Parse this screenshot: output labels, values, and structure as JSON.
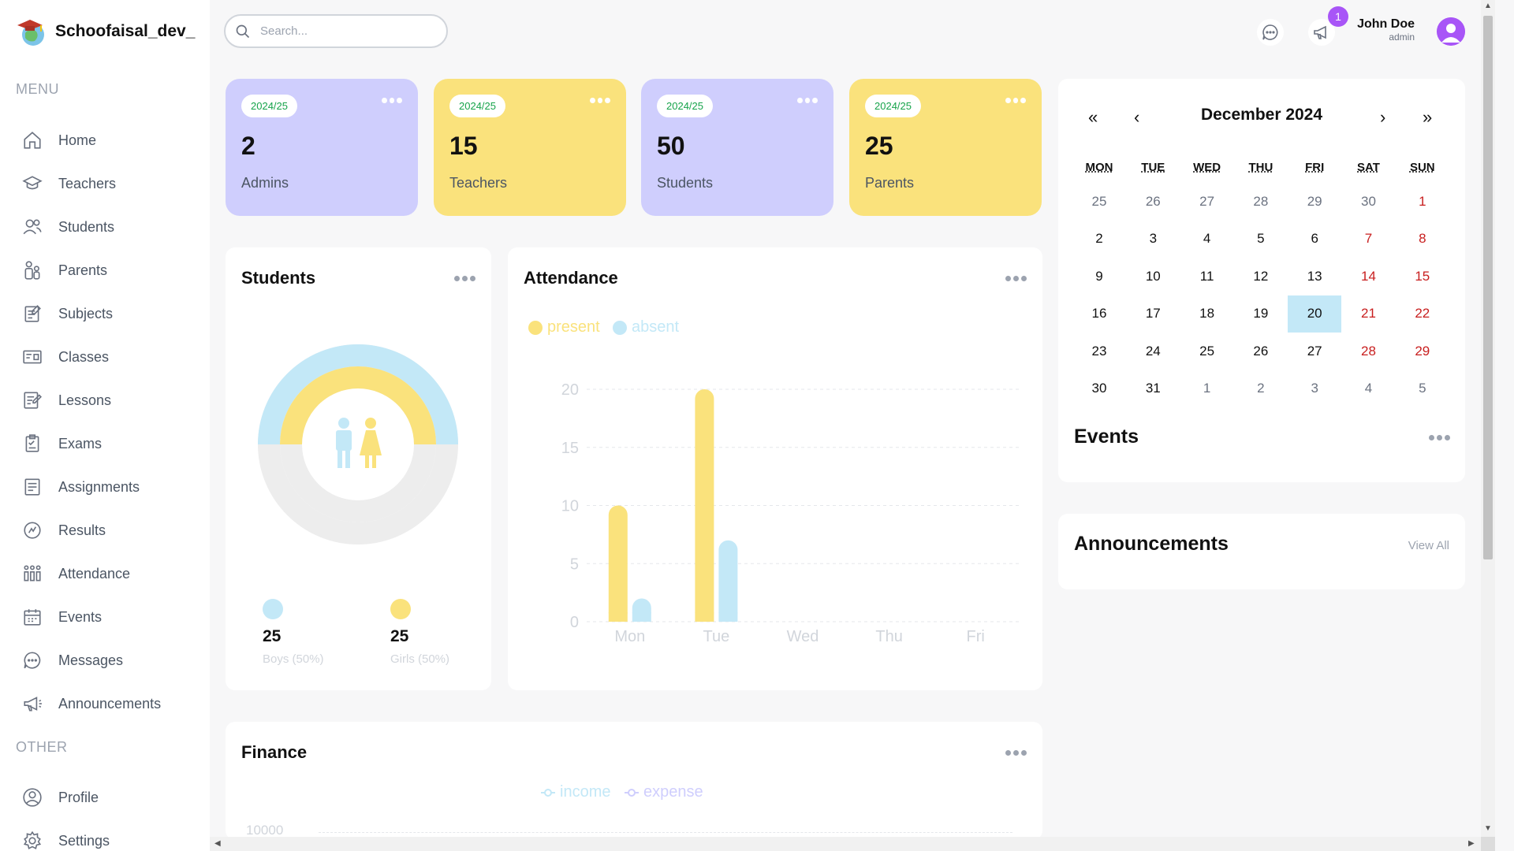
{
  "app": {
    "name": "Schoofaisal_dev_"
  },
  "sidebar": {
    "menu_label": "MENU",
    "other_label": "OTHER",
    "items": [
      {
        "label": "Home",
        "icon": "home-icon"
      },
      {
        "label": "Teachers",
        "icon": "teacher-icon"
      },
      {
        "label": "Students",
        "icon": "students-icon"
      },
      {
        "label": "Parents",
        "icon": "parents-icon"
      },
      {
        "label": "Subjects",
        "icon": "subjects-icon"
      },
      {
        "label": "Classes",
        "icon": "classes-icon"
      },
      {
        "label": "Lessons",
        "icon": "lessons-icon"
      },
      {
        "label": "Exams",
        "icon": "exams-icon"
      },
      {
        "label": "Assignments",
        "icon": "assignments-icon"
      },
      {
        "label": "Results",
        "icon": "results-icon"
      },
      {
        "label": "Attendance",
        "icon": "attendance-icon"
      },
      {
        "label": "Events",
        "icon": "events-icon"
      },
      {
        "label": "Messages",
        "icon": "messages-icon"
      },
      {
        "label": "Announcements",
        "icon": "announcements-icon"
      }
    ],
    "other_items": [
      {
        "label": "Profile",
        "icon": "profile-icon"
      },
      {
        "label": "Settings",
        "icon": "settings-icon"
      }
    ]
  },
  "topbar": {
    "search_placeholder": "Search...",
    "notification_count": "1",
    "user_name": "John Doe",
    "user_role": "admin"
  },
  "stats": [
    {
      "year": "2024/25",
      "value": "2",
      "label": "Admins",
      "color": "#cfcefd"
    },
    {
      "year": "2024/25",
      "value": "15",
      "label": "Teachers",
      "color": "#fae27c"
    },
    {
      "year": "2024/25",
      "value": "50",
      "label": "Students",
      "color": "#cfcefd"
    },
    {
      "year": "2024/25",
      "value": "25",
      "label": "Parents",
      "color": "#fae27c"
    }
  ],
  "students_panel": {
    "title": "Students",
    "boys_value": "25",
    "boys_label": "Boys (50%)",
    "girls_value": "25",
    "girls_label": "Girls (50%)",
    "boys_color": "#c3e8f7",
    "girls_color": "#fae27c",
    "boys_count": 25,
    "girls_count": 25,
    "total": 50
  },
  "attendance_panel": {
    "title": "Attendance",
    "legend_present": "present",
    "legend_absent": "absent"
  },
  "chart_data": {
    "type": "bar",
    "categories": [
      "Mon",
      "Tue",
      "Wed",
      "Thu",
      "Fri"
    ],
    "series": [
      {
        "name": "present",
        "values": [
          10,
          20,
          0,
          0,
          0
        ],
        "color": "#fae27c"
      },
      {
        "name": "absent",
        "values": [
          2,
          7,
          0,
          0,
          0
        ],
        "color": "#c3e8f7"
      }
    ],
    "yticks": [
      "0",
      "5",
      "10",
      "15",
      "20"
    ],
    "ylim": [
      0,
      20
    ],
    "grid": true,
    "legend": "top-left"
  },
  "finance_panel": {
    "title": "Finance",
    "legend_income": "income",
    "legend_expense": "expense",
    "top_tick": "10000"
  },
  "calendar": {
    "title": "December 2024",
    "nav_prev_year": "«",
    "nav_prev": "‹",
    "nav_next": "›",
    "nav_next_year": "»",
    "weekdays": [
      "MON",
      "TUE",
      "WED",
      "THU",
      "FRI",
      "SAT",
      "SUN"
    ],
    "weeks": [
      [
        "25",
        "26",
        "27",
        "28",
        "29",
        "30",
        "1"
      ],
      [
        "2",
        "3",
        "4",
        "5",
        "6",
        "7",
        "8"
      ],
      [
        "9",
        "10",
        "11",
        "12",
        "13",
        "14",
        "15"
      ],
      [
        "16",
        "17",
        "18",
        "19",
        "20",
        "21",
        "22"
      ],
      [
        "23",
        "24",
        "25",
        "26",
        "27",
        "28",
        "29"
      ],
      [
        "30",
        "31",
        "1",
        "2",
        "3",
        "4",
        "5"
      ]
    ],
    "today": "20"
  },
  "events_panel": {
    "title": "Events"
  },
  "announcements_panel": {
    "title": "Announcements",
    "view_all": "View All"
  }
}
